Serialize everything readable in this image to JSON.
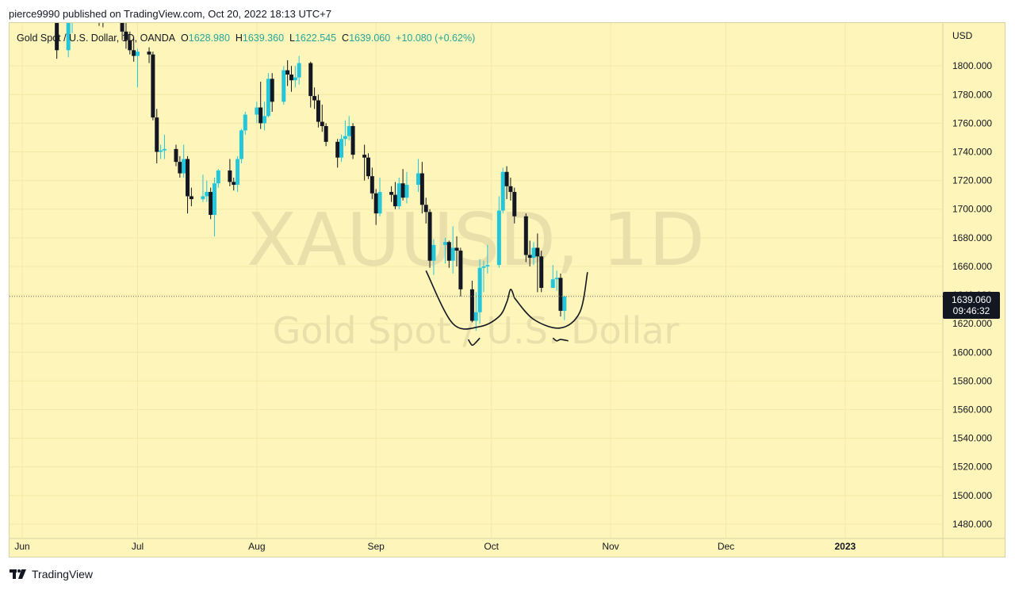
{
  "header": {
    "published": "pierce9990 published on TradingView.com, Oct 20, 2022 18:13 UTC+7"
  },
  "legend": {
    "symbol": "Gold Spot / U.S. Dollar, 1D, OANDA",
    "open_label": "O",
    "open": "1628.980",
    "high_label": "H",
    "high": "1639.360",
    "low_label": "L",
    "low": "1622.545",
    "close_label": "C",
    "close": "1639.060",
    "change": "+10.080 (+0.62%)"
  },
  "watermark": {
    "ticker": "XAUUSD, 1D",
    "name": "Gold Spot / U.S. Dollar"
  },
  "price_axis": {
    "currency": "USD"
  },
  "price_tag": {
    "price": "1639.060",
    "countdown": "09:46:32"
  },
  "footer": {
    "brand": "TradingView",
    "logo_icon": "tradingview-logo-icon"
  },
  "colors": {
    "background": "#fdf5b9",
    "grid": "#f2e9a8",
    "up": "#26c6da",
    "down": "#131722",
    "tag": "#131722",
    "watermark": "#e8dfab"
  },
  "chart_data": {
    "type": "candlestick",
    "ylim": [
      1470,
      1830
    ],
    "yticks": [
      1480,
      1500,
      1520,
      1540,
      1560,
      1580,
      1600,
      1620,
      1640,
      1660,
      1680,
      1700,
      1720,
      1740,
      1760,
      1780,
      1800
    ],
    "x_labels": [
      "Jun",
      "Jul",
      "Aug",
      "Sep",
      "Oct",
      "Nov",
      "Dec",
      "2023"
    ],
    "x_label_dates": [
      "2022-06-01",
      "2022-07-01",
      "2022-08-01",
      "2022-09-01",
      "2022-10-01",
      "2022-11-01",
      "2022-12-01",
      "2023-01-01"
    ],
    "last_price": 1639.06,
    "candles": [
      {
        "d": "2022-06-09",
        "o": 1850,
        "h": 1856,
        "l": 1836,
        "c": 1840
      },
      {
        "d": "2022-06-10",
        "o": 1840,
        "h": 1842,
        "l": 1805,
        "c": 1811
      },
      {
        "d": "2022-06-13",
        "o": 1811,
        "h": 1840,
        "l": 1806,
        "c": 1834
      },
      {
        "d": "2022-06-14",
        "o": 1834,
        "h": 1850,
        "l": 1823,
        "c": 1846
      },
      {
        "d": "2022-06-21",
        "o": 1840,
        "h": 1842,
        "l": 1828,
        "c": 1838
      },
      {
        "d": "2022-06-22",
        "o": 1838,
        "h": 1845,
        "l": 1827,
        "c": 1830
      },
      {
        "d": "2022-06-27",
        "o": 1833,
        "h": 1840,
        "l": 1818,
        "c": 1824
      },
      {
        "d": "2022-06-28",
        "o": 1824,
        "h": 1830,
        "l": 1812,
        "c": 1818
      },
      {
        "d": "2022-06-29",
        "o": 1818,
        "h": 1824,
        "l": 1808,
        "c": 1811
      },
      {
        "d": "2022-06-30",
        "o": 1811,
        "h": 1820,
        "l": 1803,
        "c": 1807
      },
      {
        "d": "2022-07-01",
        "o": 1807,
        "h": 1812,
        "l": 1785,
        "c": 1810
      },
      {
        "d": "2022-07-04",
        "o": 1810,
        "h": 1813,
        "l": 1802,
        "c": 1808
      },
      {
        "d": "2022-07-05",
        "o": 1808,
        "h": 1810,
        "l": 1762,
        "c": 1764
      },
      {
        "d": "2022-07-06",
        "o": 1764,
        "h": 1770,
        "l": 1732,
        "c": 1740
      },
      {
        "d": "2022-07-07",
        "o": 1740,
        "h": 1745,
        "l": 1735,
        "c": 1741
      },
      {
        "d": "2022-07-08",
        "o": 1741,
        "h": 1752,
        "l": 1735,
        "c": 1742
      },
      {
        "d": "2022-07-11",
        "o": 1742,
        "h": 1745,
        "l": 1730,
        "c": 1733
      },
      {
        "d": "2022-07-12",
        "o": 1733,
        "h": 1737,
        "l": 1722,
        "c": 1725
      },
      {
        "d": "2022-07-13",
        "o": 1725,
        "h": 1745,
        "l": 1722,
        "c": 1735
      },
      {
        "d": "2022-07-14",
        "o": 1735,
        "h": 1737,
        "l": 1697,
        "c": 1709
      },
      {
        "d": "2022-07-15",
        "o": 1709,
        "h": 1715,
        "l": 1702,
        "c": 1707
      },
      {
        "d": "2022-07-18",
        "o": 1707,
        "h": 1724,
        "l": 1705,
        "c": 1709
      },
      {
        "d": "2022-07-19",
        "o": 1709,
        "h": 1720,
        "l": 1705,
        "c": 1712
      },
      {
        "d": "2022-07-20",
        "o": 1712,
        "h": 1715,
        "l": 1693,
        "c": 1696
      },
      {
        "d": "2022-07-21",
        "o": 1696,
        "h": 1722,
        "l": 1681,
        "c": 1718
      },
      {
        "d": "2022-07-22",
        "o": 1718,
        "h": 1728,
        "l": 1715,
        "c": 1727
      },
      {
        "d": "2022-07-25",
        "o": 1727,
        "h": 1735,
        "l": 1716,
        "c": 1719
      },
      {
        "d": "2022-07-26",
        "o": 1719,
        "h": 1722,
        "l": 1713,
        "c": 1717
      },
      {
        "d": "2022-07-27",
        "o": 1717,
        "h": 1737,
        "l": 1712,
        "c": 1735
      },
      {
        "d": "2022-07-28",
        "o": 1735,
        "h": 1756,
        "l": 1732,
        "c": 1755
      },
      {
        "d": "2022-07-29",
        "o": 1755,
        "h": 1768,
        "l": 1752,
        "c": 1766
      },
      {
        "d": "2022-08-01",
        "o": 1766,
        "h": 1775,
        "l": 1760,
        "c": 1771
      },
      {
        "d": "2022-08-02",
        "o": 1771,
        "h": 1789,
        "l": 1756,
        "c": 1760
      },
      {
        "d": "2022-08-03",
        "o": 1760,
        "h": 1775,
        "l": 1755,
        "c": 1765
      },
      {
        "d": "2022-08-04",
        "o": 1765,
        "h": 1795,
        "l": 1764,
        "c": 1791
      },
      {
        "d": "2022-08-05",
        "o": 1791,
        "h": 1795,
        "l": 1768,
        "c": 1775
      },
      {
        "d": "2022-08-08",
        "o": 1775,
        "h": 1800,
        "l": 1773,
        "c": 1797
      },
      {
        "d": "2022-08-09",
        "o": 1797,
        "h": 1804,
        "l": 1786,
        "c": 1794
      },
      {
        "d": "2022-08-10",
        "o": 1794,
        "h": 1800,
        "l": 1782,
        "c": 1790
      },
      {
        "d": "2022-08-11",
        "o": 1790,
        "h": 1800,
        "l": 1785,
        "c": 1792
      },
      {
        "d": "2022-08-12",
        "o": 1792,
        "h": 1807,
        "l": 1787,
        "c": 1802
      },
      {
        "d": "2022-08-15",
        "o": 1802,
        "h": 1803,
        "l": 1771,
        "c": 1779
      },
      {
        "d": "2022-08-16",
        "o": 1779,
        "h": 1785,
        "l": 1770,
        "c": 1776
      },
      {
        "d": "2022-08-17",
        "o": 1776,
        "h": 1780,
        "l": 1757,
        "c": 1761
      },
      {
        "d": "2022-08-18",
        "o": 1761,
        "h": 1773,
        "l": 1754,
        "c": 1758
      },
      {
        "d": "2022-08-19",
        "o": 1758,
        "h": 1760,
        "l": 1744,
        "c": 1747
      },
      {
        "d": "2022-08-22",
        "o": 1747,
        "h": 1749,
        "l": 1729,
        "c": 1736
      },
      {
        "d": "2022-08-23",
        "o": 1736,
        "h": 1752,
        "l": 1733,
        "c": 1749
      },
      {
        "d": "2022-08-24",
        "o": 1749,
        "h": 1762,
        "l": 1744,
        "c": 1751
      },
      {
        "d": "2022-08-25",
        "o": 1751,
        "h": 1765,
        "l": 1748,
        "c": 1758
      },
      {
        "d": "2022-08-26",
        "o": 1758,
        "h": 1760,
        "l": 1735,
        "c": 1738
      },
      {
        "d": "2022-08-29",
        "o": 1738,
        "h": 1745,
        "l": 1720,
        "c": 1736
      },
      {
        "d": "2022-08-30",
        "o": 1736,
        "h": 1739,
        "l": 1721,
        "c": 1723
      },
      {
        "d": "2022-08-31",
        "o": 1723,
        "h": 1729,
        "l": 1707,
        "c": 1711
      },
      {
        "d": "2022-09-01",
        "o": 1711,
        "h": 1714,
        "l": 1689,
        "c": 1697
      },
      {
        "d": "2022-09-02",
        "o": 1697,
        "h": 1722,
        "l": 1695,
        "c": 1712
      },
      {
        "d": "2022-09-05",
        "o": 1712,
        "h": 1716,
        "l": 1705,
        "c": 1710
      },
      {
        "d": "2022-09-06",
        "o": 1710,
        "h": 1719,
        "l": 1700,
        "c": 1702
      },
      {
        "d": "2022-09-07",
        "o": 1702,
        "h": 1722,
        "l": 1700,
        "c": 1718
      },
      {
        "d": "2022-09-08",
        "o": 1718,
        "h": 1728,
        "l": 1706,
        "c": 1708
      },
      {
        "d": "2022-09-09",
        "o": 1708,
        "h": 1726,
        "l": 1704,
        "c": 1717
      },
      {
        "d": "2022-09-12",
        "o": 1717,
        "h": 1735,
        "l": 1712,
        "c": 1725
      },
      {
        "d": "2022-09-13",
        "o": 1725,
        "h": 1733,
        "l": 1697,
        "c": 1703
      },
      {
        "d": "2022-09-14",
        "o": 1703,
        "h": 1708,
        "l": 1690,
        "c": 1698
      },
      {
        "d": "2022-09-15",
        "o": 1698,
        "h": 1700,
        "l": 1659,
        "c": 1664
      },
      {
        "d": "2022-09-16",
        "o": 1664,
        "h": 1679,
        "l": 1654,
        "c": 1675
      },
      {
        "d": "2022-09-19",
        "o": 1675,
        "h": 1680,
        "l": 1662,
        "c": 1677
      },
      {
        "d": "2022-09-20",
        "o": 1677,
        "h": 1678,
        "l": 1659,
        "c": 1664
      },
      {
        "d": "2022-09-21",
        "o": 1664,
        "h": 1688,
        "l": 1655,
        "c": 1673
      },
      {
        "d": "2022-09-22",
        "o": 1673,
        "h": 1681,
        "l": 1660,
        "c": 1671
      },
      {
        "d": "2022-09-23",
        "o": 1671,
        "h": 1673,
        "l": 1639,
        "c": 1644
      },
      {
        "d": "2022-09-26",
        "o": 1644,
        "h": 1650,
        "l": 1621,
        "c": 1622
      },
      {
        "d": "2022-09-27",
        "o": 1622,
        "h": 1642,
        "l": 1615,
        "c": 1628
      },
      {
        "d": "2022-09-28",
        "o": 1628,
        "h": 1665,
        "l": 1620,
        "c": 1659
      },
      {
        "d": "2022-09-29",
        "o": 1659,
        "h": 1664,
        "l": 1642,
        "c": 1660
      },
      {
        "d": "2022-09-30",
        "o": 1660,
        "h": 1675,
        "l": 1655,
        "c": 1661
      },
      {
        "d": "2022-10-03",
        "o": 1661,
        "h": 1709,
        "l": 1659,
        "c": 1699
      },
      {
        "d": "2022-10-04",
        "o": 1699,
        "h": 1729,
        "l": 1697,
        "c": 1726
      },
      {
        "d": "2022-10-05",
        "o": 1726,
        "h": 1730,
        "l": 1707,
        "c": 1716
      },
      {
        "d": "2022-10-06",
        "o": 1716,
        "h": 1722,
        "l": 1706,
        "c": 1712
      },
      {
        "d": "2022-10-07",
        "o": 1712,
        "h": 1715,
        "l": 1690,
        "c": 1695
      },
      {
        "d": "2022-10-10",
        "o": 1695,
        "h": 1697,
        "l": 1663,
        "c": 1668
      },
      {
        "d": "2022-10-11",
        "o": 1668,
        "h": 1678,
        "l": 1660,
        "c": 1666
      },
      {
        "d": "2022-10-12",
        "o": 1666,
        "h": 1677,
        "l": 1661,
        "c": 1673
      },
      {
        "d": "2022-10-13",
        "o": 1673,
        "h": 1683,
        "l": 1642,
        "c": 1667
      },
      {
        "d": "2022-10-14",
        "o": 1667,
        "h": 1671,
        "l": 1642,
        "c": 1645
      },
      {
        "d": "2022-10-17",
        "o": 1645,
        "h": 1661,
        "l": 1645,
        "c": 1651
      },
      {
        "d": "2022-10-18",
        "o": 1651,
        "h": 1657,
        "l": 1643,
        "c": 1652
      },
      {
        "d": "2022-10-19",
        "o": 1652,
        "h": 1655,
        "l": 1625,
        "c": 1629
      },
      {
        "d": "2022-10-20",
        "o": 1628.98,
        "h": 1639.36,
        "l": 1622.545,
        "c": 1639.06
      }
    ],
    "drawings": [
      {
        "type": "curve",
        "points": [
          [
            "2022-09-14",
            1657
          ],
          [
            "2022-09-21",
            1620
          ],
          [
            "2022-09-28",
            1618
          ],
          [
            "2022-10-03",
            1625
          ],
          [
            "2022-10-05",
            1635
          ],
          [
            "2022-10-06",
            1644
          ],
          [
            "2022-10-07",
            1638
          ]
        ]
      },
      {
        "type": "curve",
        "points": [
          [
            "2022-10-07",
            1638
          ],
          [
            "2022-10-12",
            1623
          ],
          [
            "2022-10-19",
            1617
          ],
          [
            "2022-10-24",
            1628
          ],
          [
            "2022-10-26",
            1656
          ]
        ]
      },
      {
        "type": "curve",
        "points": [
          [
            "2022-09-25",
            1609
          ],
          [
            "2022-09-26",
            1605
          ],
          [
            "2022-09-27",
            1607
          ],
          [
            "2022-09-28",
            1610
          ]
        ]
      },
      {
        "type": "curve",
        "points": [
          [
            "2022-10-17",
            1610
          ],
          [
            "2022-10-18",
            1608
          ],
          [
            "2022-10-19",
            1609
          ],
          [
            "2022-10-21",
            1608
          ]
        ]
      }
    ]
  }
}
